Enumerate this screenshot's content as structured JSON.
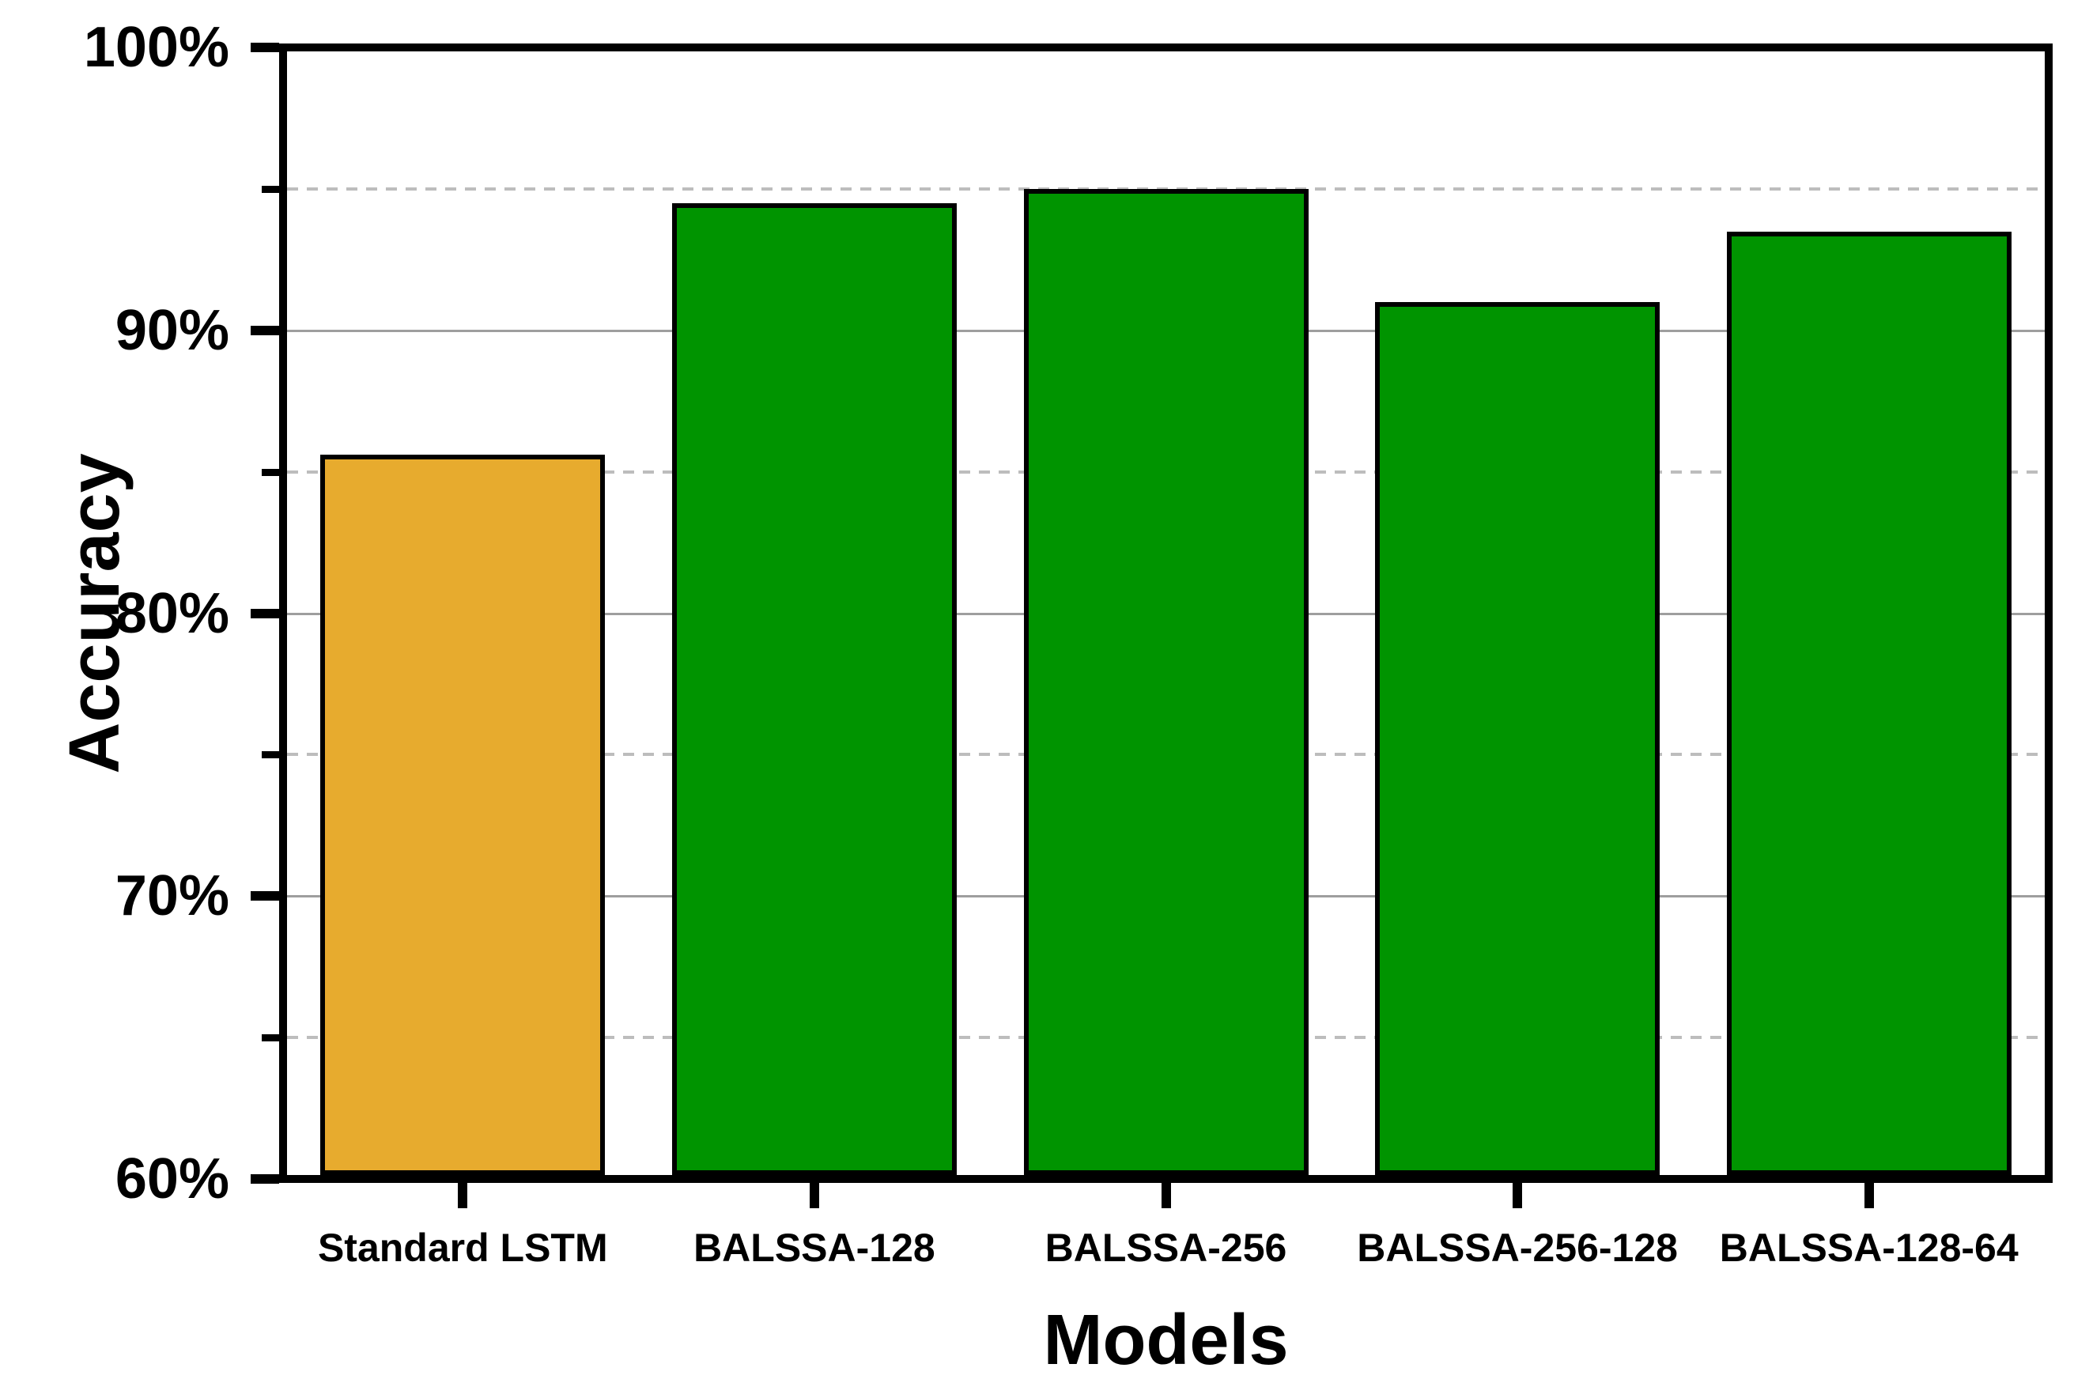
{
  "chart_data": {
    "type": "bar",
    "title": "",
    "xlabel": "Models",
    "ylabel": "Accuracy",
    "categories": [
      "Standard LSTM",
      "BALSSA-128",
      "BALSSA-256",
      "BALSSA-256-128",
      "BALSSA-128-64"
    ],
    "values": [
      85.6,
      94.5,
      95.0,
      91.0,
      93.5
    ],
    "value_unit": "%",
    "bar_colors": [
      "#E7AB2E",
      "#009400",
      "#009400",
      "#009400",
      "#009400"
    ],
    "bar_border_color": "#000000",
    "ylim": [
      60,
      100
    ],
    "y_major_ticks": [
      100,
      90,
      80,
      70,
      60
    ],
    "y_major_tick_labels": [
      "100%",
      "90%",
      "80%",
      "70%",
      "60%"
    ],
    "y_minor_ticks": [
      95,
      85,
      75,
      65
    ],
    "grid": {
      "major_style": "solid",
      "major_color": "#9E9E9E",
      "minor_style": "dashed",
      "minor_color": "#BDBDBD",
      "orientation": "horizontal"
    },
    "legend_position": "none",
    "plot_background": "#FFFFFF"
  }
}
